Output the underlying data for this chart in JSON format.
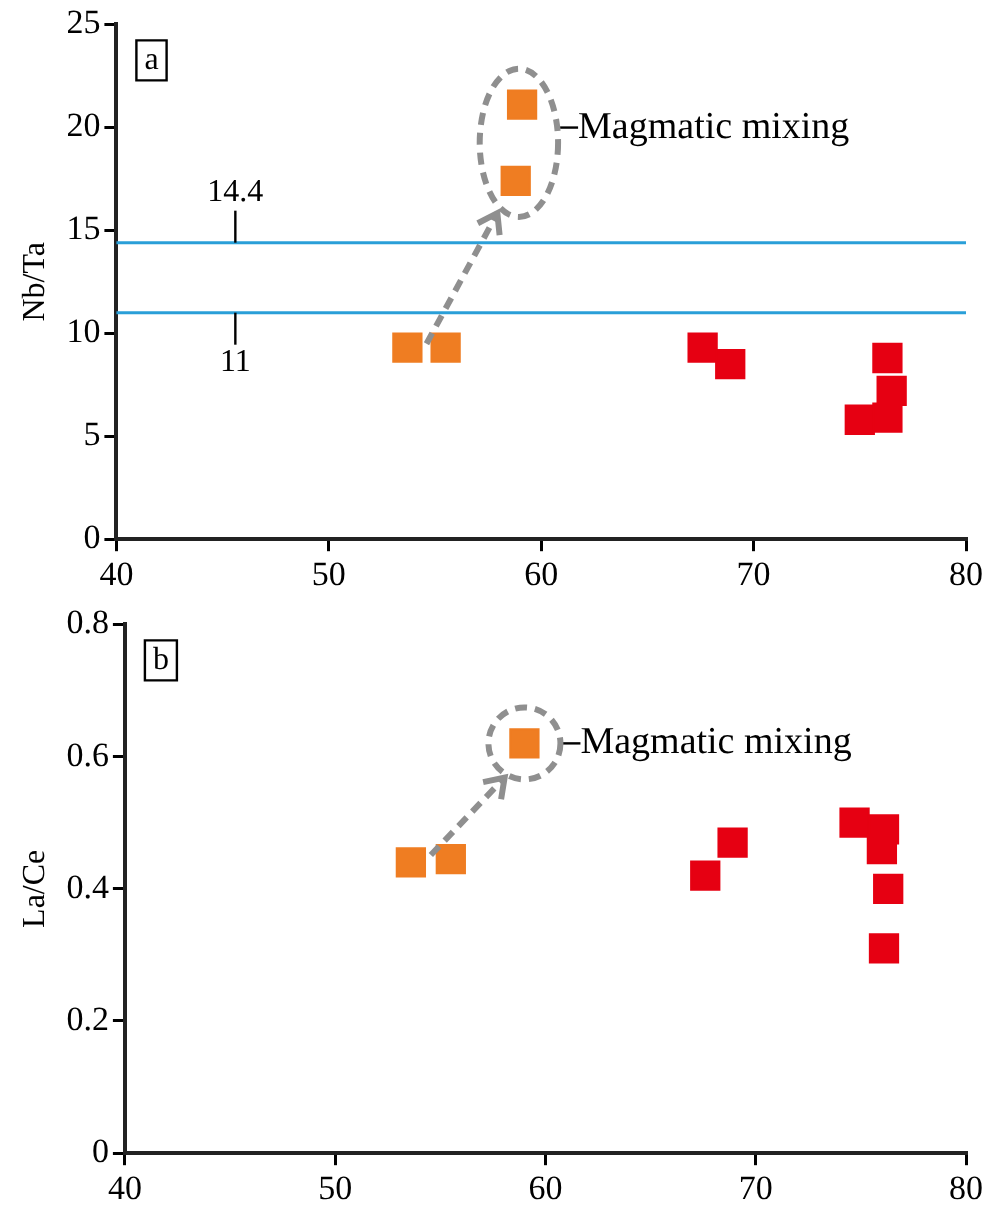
{
  "chart_data": [
    {
      "type": "scatter",
      "ylabel": "Nb/Ta",
      "xlim": [
        40,
        80
      ],
      "xticks": [
        40,
        50,
        60,
        70,
        80
      ],
      "ylim": [
        0,
        25
      ],
      "yticks": [
        0,
        5,
        10,
        15,
        20,
        25
      ],
      "marker": "square",
      "annotations": [
        "a",
        "Magmatic mixing"
      ],
      "ref_lines": [
        {
          "axis": "y",
          "value": 14.4,
          "label": "14.4",
          "color": "#2a9fd8"
        },
        {
          "axis": "y",
          "value": 11,
          "label": "11",
          "color": "#2a9fd8"
        }
      ],
      "series": [
        {
          "color": "#ef7d22",
          "x": [
            53.7,
            55.5,
            59.1,
            58.8
          ],
          "values": [
            9.3,
            9.3,
            21.1,
            17.4
          ]
        },
        {
          "color": "#e60012",
          "x": [
            67.6,
            68.9,
            76.3,
            76.5,
            76.2,
            75.0,
            76.3
          ],
          "values": [
            9.3,
            8.5,
            8.8,
            7.2,
            null,
            5.8,
            5.9
          ]
        }
      ]
    },
    {
      "type": "scatter",
      "ylabel": "La/Ce",
      "xlim": [
        40,
        80
      ],
      "xticks": [
        40,
        50,
        60,
        70,
        80
      ],
      "ylim": [
        0,
        0.8
      ],
      "yticks": [
        0,
        0.2,
        0.4,
        0.6,
        0.8
      ],
      "marker": "square",
      "annotations": [
        "b",
        "Magmatic mixing"
      ],
      "series": [
        {
          "color": "#ef7d22",
          "x": [
            53.6,
            55.5,
            59.0
          ],
          "values": [
            0.44,
            0.445,
            0.62
          ]
        },
        {
          "color": "#e60012",
          "x": [
            67.6,
            68.9,
            74.7,
            76.1,
            76.0,
            76.3,
            76.1
          ],
          "values": [
            0.42,
            0.47,
            0.5,
            0.49,
            0.46,
            0.4,
            0.31
          ]
        }
      ]
    }
  ]
}
